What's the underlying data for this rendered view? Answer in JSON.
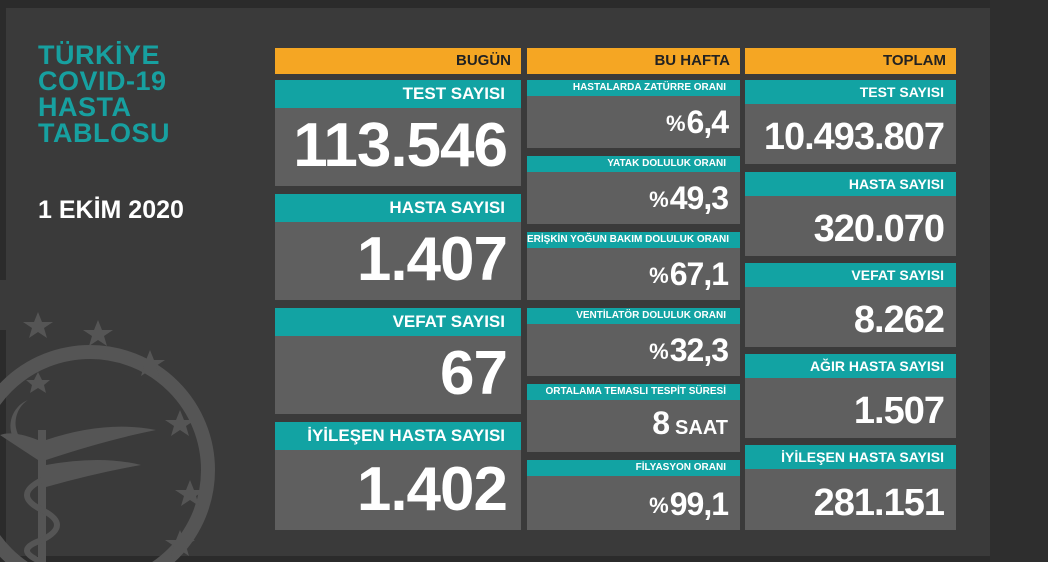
{
  "header": {
    "title_lines": [
      "TÜRKİYE",
      "COVID-19",
      "HASTA",
      "TABLOSU"
    ],
    "date": "1 EKİM 2020"
  },
  "columns": {
    "today": "BUGÜN",
    "week": "BU HAFTA",
    "total": "TOPLAM"
  },
  "today": [
    {
      "label": "TEST SAYISI",
      "value": "113.546"
    },
    {
      "label": "HASTA SAYISI",
      "value": "1.407"
    },
    {
      "label": "VEFAT SAYISI",
      "value": "67"
    },
    {
      "label": "İYİLEŞEN HASTA SAYISI",
      "value": "1.402"
    }
  ],
  "week": [
    {
      "label": "HASTALARDA ZATÜRRE ORANI",
      "prefix": "%",
      "value": "6,4",
      "unit": ""
    },
    {
      "label": "YATAK DOLULUK ORANI",
      "prefix": "%",
      "value": "49,3",
      "unit": ""
    },
    {
      "label": "ERİŞKİN YOĞUN BAKIM DOLULUK ORANI",
      "prefix": "%",
      "value": "67,1",
      "unit": ""
    },
    {
      "label": "VENTİLATÖR DOLULUK ORANI",
      "prefix": "%",
      "value": "32,3",
      "unit": ""
    },
    {
      "label": "ORTALAMA TEMASLI TESPİT SÜRESİ",
      "prefix": "",
      "value": "8",
      "unit": "SAAT"
    },
    {
      "label": "FİLYASYON ORANI",
      "prefix": "%",
      "value": "99,1",
      "unit": ""
    }
  ],
  "total": [
    {
      "label": "TEST SAYISI",
      "value": "10.493.807"
    },
    {
      "label": "HASTA SAYISI",
      "value": "320.070"
    },
    {
      "label": "VEFAT SAYISI",
      "value": "8.262"
    },
    {
      "label": "AĞIR HASTA SAYISI",
      "value": "1.507"
    },
    {
      "label": "İYİLEŞEN HASTA SAYISI",
      "value": "281.151"
    }
  ],
  "colors": {
    "accent_teal": "#12a3a3",
    "header_orange": "#f5a623",
    "card_gray": "#5f5f5f",
    "background": "#3a3a3a"
  }
}
